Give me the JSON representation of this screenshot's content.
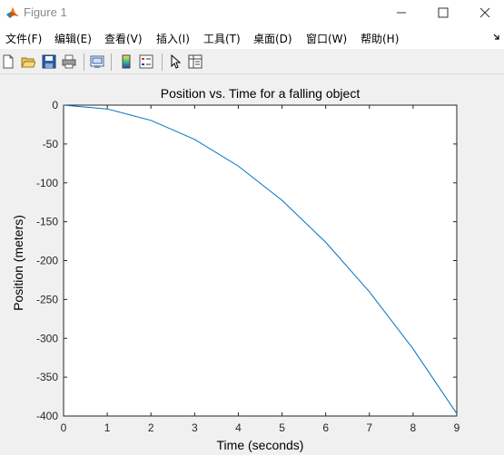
{
  "window": {
    "title": "Figure 1",
    "icon": "matlab-icon"
  },
  "menu": {
    "items": [
      {
        "label": "文件(F)"
      },
      {
        "label": "编辑(E)"
      },
      {
        "label": "查看(V)"
      },
      {
        "label": "插入(I)"
      },
      {
        "label": "工具(T)"
      },
      {
        "label": "桌面(D)"
      },
      {
        "label": "窗口(W)"
      },
      {
        "label": "帮助(H)"
      }
    ]
  },
  "toolbar": {
    "tools": [
      "new-figure-icon",
      "open-file-icon",
      "save-icon",
      "print-icon",
      "link-plot-icon",
      "insert-colorbar-icon",
      "insert-legend-icon",
      "edit-plot-icon",
      "property-inspector-icon"
    ]
  },
  "chart_data": {
    "type": "line",
    "title": "Position vs. Time for a falling object",
    "xlabel": "Time (seconds)",
    "ylabel": "Position (meters)",
    "xlim": [
      0,
      9
    ],
    "ylim": [
      -400,
      0
    ],
    "xticks": [
      "0",
      "1",
      "2",
      "3",
      "4",
      "5",
      "6",
      "7",
      "8",
      "9"
    ],
    "yticks": [
      "0",
      "-50",
      "-100",
      "-150",
      "-200",
      "-250",
      "-300",
      "-350",
      "-400"
    ],
    "grid": false,
    "series": [
      {
        "color": "#0072BD",
        "x": [
          0,
          1,
          2,
          3,
          4,
          5,
          6,
          7,
          8,
          9
        ],
        "y": [
          0,
          -4.9,
          -19.6,
          -44.1,
          -78.4,
          -122.5,
          -176.4,
          -240.1,
          -313.6,
          -396.9
        ]
      }
    ]
  }
}
